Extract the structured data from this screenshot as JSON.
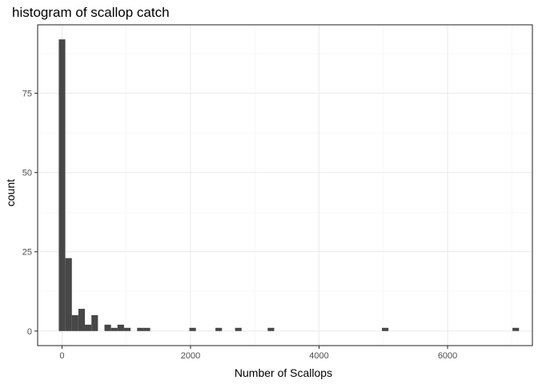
{
  "chart_data": {
    "type": "bar",
    "title": "histogram of scallop catch",
    "xlabel": "Number of Scallops",
    "ylabel": "count",
    "xlim": [
      -380,
      7320
    ],
    "ylim": [
      -4.6,
      96.6
    ],
    "bin_width": 101.6,
    "x_ticks": [
      0,
      2000,
      4000,
      6000
    ],
    "x_tick_labels": [
      "0",
      "2000",
      "4000",
      "6000"
    ],
    "y_ticks": [
      0,
      25,
      50,
      75
    ],
    "y_tick_labels": [
      "0",
      "25",
      "50",
      "75"
    ],
    "grid": true,
    "bar_color": "#474747",
    "bins": [
      {
        "x": 0,
        "count": 92
      },
      {
        "x": 102,
        "count": 23
      },
      {
        "x": 203,
        "count": 5
      },
      {
        "x": 305,
        "count": 7
      },
      {
        "x": 406,
        "count": 2
      },
      {
        "x": 508,
        "count": 5
      },
      {
        "x": 711,
        "count": 2
      },
      {
        "x": 813,
        "count": 1
      },
      {
        "x": 914,
        "count": 2
      },
      {
        "x": 1016,
        "count": 1
      },
      {
        "x": 1219,
        "count": 1
      },
      {
        "x": 1321,
        "count": 1
      },
      {
        "x": 2032,
        "count": 1
      },
      {
        "x": 2438,
        "count": 1
      },
      {
        "x": 2743,
        "count": 1
      },
      {
        "x": 3251,
        "count": 1
      },
      {
        "x": 5029,
        "count": 1
      },
      {
        "x": 7061,
        "count": 1
      }
    ]
  }
}
